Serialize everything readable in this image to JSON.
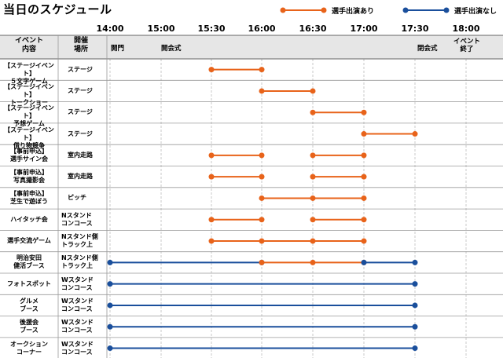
{
  "title": "当日のスケジュール",
  "legend": [
    {
      "label": "選手出演あり",
      "color": "#e8631a"
    },
    {
      "label": "選手出演なし",
      "color": "#1a4f9c"
    }
  ],
  "times": [
    "14:00",
    "15:00",
    "15:30",
    "16:00",
    "16:30",
    "17:00",
    "17:30",
    "18:00"
  ],
  "header": {
    "event": [
      "イベント",
      "内容"
    ],
    "venue": [
      "開催",
      "場所"
    ]
  },
  "markers": {
    "open_gate": "開門",
    "opening": "開会式",
    "closing": "閉会式",
    "event_end": [
      "イベント",
      "終了"
    ]
  },
  "rows": [
    {
      "event": [
        "【ステージイベント】",
        "５文字ゲーム"
      ],
      "venue": [
        "ステージ"
      ],
      "segments": [
        {
          "points": [
            "15:30",
            "16:00"
          ],
          "type": "orange"
        }
      ]
    },
    {
      "event": [
        "【ステージイベント】",
        "トークショー"
      ],
      "venue": [
        "ステージ"
      ],
      "segments": [
        {
          "points": [
            "16:00",
            "16:30"
          ],
          "type": "orange"
        }
      ]
    },
    {
      "event": [
        "【ステージイベント】",
        "予想ゲーム"
      ],
      "venue": [
        "ステージ"
      ],
      "segments": [
        {
          "points": [
            "16:30",
            "17:00"
          ],
          "type": "orange"
        }
      ]
    },
    {
      "event": [
        "【ステージイベント】",
        "借り物競争"
      ],
      "venue": [
        "ステージ"
      ],
      "segments": [
        {
          "points": [
            "17:00",
            "17:30"
          ],
          "type": "orange"
        }
      ]
    },
    {
      "event": [
        "【事前申込】",
        "選手サイン会"
      ],
      "venue": [
        "室内走路"
      ],
      "segments": [
        {
          "points": [
            "15:30",
            "16:00"
          ],
          "type": "orange"
        },
        {
          "points": [
            "16:30",
            "17:00"
          ],
          "type": "orange"
        }
      ]
    },
    {
      "event": [
        "【事前申込】",
        "写真撮影会"
      ],
      "venue": [
        "室内走路"
      ],
      "segments": [
        {
          "points": [
            "15:30",
            "16:00"
          ],
          "type": "orange"
        },
        {
          "points": [
            "16:30",
            "17:00"
          ],
          "type": "orange"
        }
      ]
    },
    {
      "event": [
        "【事前申込】",
        "芝生で遊ぼう"
      ],
      "venue": [
        "ピッチ"
      ],
      "segments": [
        {
          "points": [
            "16:00",
            "16:30",
            "17:00"
          ],
          "type": "orange"
        }
      ]
    },
    {
      "event": [
        "ハイタッチ会"
      ],
      "venue": [
        "Nスタンド",
        "コンコース"
      ],
      "segments": [
        {
          "points": [
            "15:30",
            "16:00"
          ],
          "type": "orange"
        },
        {
          "points": [
            "16:30",
            "17:00"
          ],
          "type": "orange"
        }
      ]
    },
    {
      "event": [
        "選手交流ゲーム"
      ],
      "venue": [
        "Nスタンド側",
        "トラック上"
      ],
      "segments": [
        {
          "points": [
            "15:30",
            "16:00",
            "16:30",
            "17:00"
          ],
          "type": "orange"
        }
      ]
    },
    {
      "event": [
        "明治安田",
        "健活ブース"
      ],
      "venue": [
        "Nスタンド側",
        "トラック上"
      ],
      "segments": [
        {
          "points": [
            "14:00",
            "16:00"
          ],
          "type": "blue"
        },
        {
          "points": [
            "16:00",
            "16:30",
            "17:00"
          ],
          "type": "orange"
        },
        {
          "points": [
            "17:00",
            "17:30"
          ],
          "type": "blue"
        }
      ]
    },
    {
      "event": [
        "フォトスポット"
      ],
      "venue": [
        "Wスタンド",
        "コンコース"
      ],
      "segments": [
        {
          "points": [
            "14:00",
            "17:30"
          ],
          "type": "blue"
        }
      ]
    },
    {
      "event": [
        "グルメ",
        "ブース"
      ],
      "venue": [
        "Wスタンド",
        "コンコース"
      ],
      "segments": [
        {
          "points": [
            "14:00",
            "17:30"
          ],
          "type": "blue"
        }
      ]
    },
    {
      "event": [
        "後援会",
        "ブース"
      ],
      "venue": [
        "Wスタンド",
        "コンコース"
      ],
      "segments": [
        {
          "points": [
            "14:00",
            "17:30"
          ],
          "type": "blue"
        }
      ]
    },
    {
      "event": [
        "オークション",
        "コーナー"
      ],
      "venue": [
        "Wスタンド",
        "コンコース"
      ],
      "segments": [
        {
          "points": [
            "14:00",
            "17:30"
          ],
          "type": "blue"
        }
      ]
    }
  ],
  "colors": {
    "orange": "#e8631a",
    "blue": "#1a4f9c",
    "header_bg": "#e6e6e6",
    "grid": "#999999"
  }
}
